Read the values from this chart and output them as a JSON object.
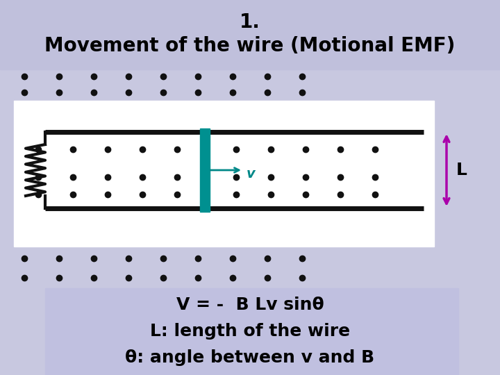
{
  "title_line1": "1.",
  "title_line2": "Movement of the wire (Motional EMF)",
  "bg_color": "#c8c8e0",
  "title_bg_color": "#c0c0dc",
  "formula_box_color": "#c0c0e0",
  "formula_line1": "V = -  B Lv sinθ",
  "formula_line2": "L: length of the wire",
  "formula_line3": "θ: angle between v and B",
  "teal_color": "#008888",
  "purple_color": "#aa00aa",
  "dot_color": "#111111",
  "rail_color": "#111111",
  "wire_color": "#009090",
  "L_box_color": "#c8c8e0",
  "title_fontsize": 20,
  "formula_fontsize": 18
}
